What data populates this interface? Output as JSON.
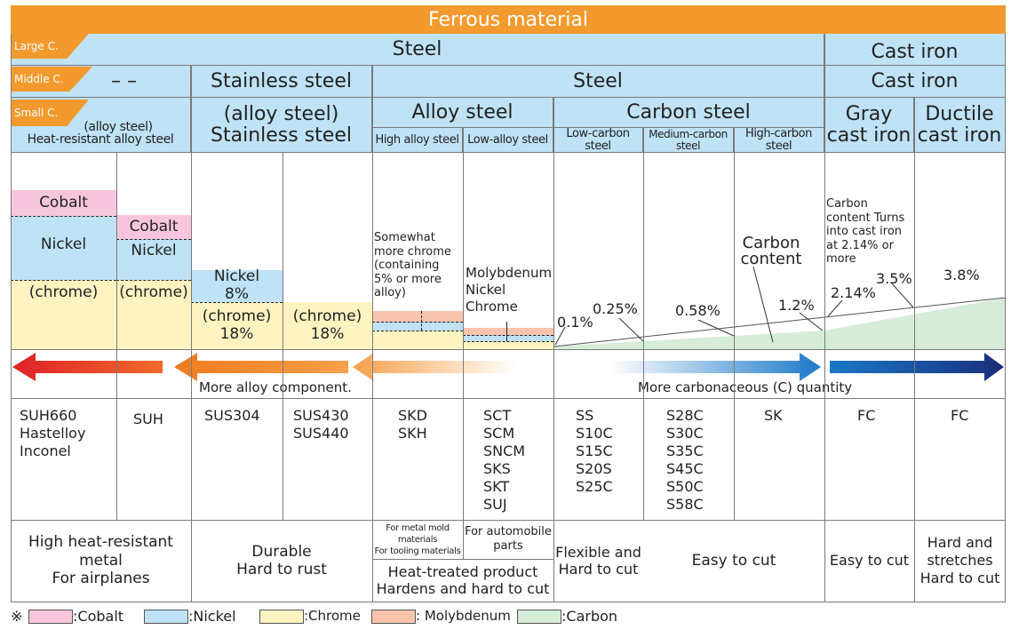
{
  "title": "Ferrous material",
  "labels": {
    "large": "Large C.",
    "middle": "Middle C.",
    "small": "Small C."
  },
  "large": {
    "steel": "Steel",
    "cast_iron": "Cast iron"
  },
  "middle": {
    "dashes": "– –",
    "stainless": "Stainless steel",
    "steel": "Steel",
    "cast_iron": "Cast iron"
  },
  "small": {
    "heat_line1": "(alloy steel)",
    "heat_line2": "Heat-resistant alloy steel",
    "stainless_line1": "(alloy steel)",
    "stainless_line2": "Stainless steel",
    "alloy": "Alloy steel",
    "carbon": "Carbon steel",
    "gray_line1": "Gray",
    "gray_line2": "cast iron",
    "ductile_line1": "Ductile",
    "ductile_line2": "cast iron"
  },
  "subcats": {
    "high_alloy": "High alloy steel",
    "low_alloy": "Low-alloy steel",
    "low_carbon": "Low-carbon steel",
    "medium_carbon": "Medium-carbon steel",
    "high_carbon": "High-carbon steel"
  },
  "composition": {
    "cobalt": "Cobalt",
    "nickel": "Nickel",
    "chrome_paren": "(chrome)",
    "nickel_8": "Nickel",
    "pct_8": "8%",
    "pct_18": "18%",
    "somewhat_chrome": "Somewhat more chrome (containing 5% or more alloy)",
    "molybdenum": "Molybdenum",
    "mo_nickel": "Nickel",
    "mo_chrome": "Chrome",
    "carbon_content": "Carbon content",
    "cast_iron_note": "Carbon content Turns into cast iron at 2.14% or more"
  },
  "carbon_pcts": [
    "0.1%",
    "0.25%",
    "0.58%",
    "1.2%",
    "2.14%",
    "3.5%",
    "3.8%"
  ],
  "arrows": {
    "alloy_text": "More alloy component.",
    "carbon_text": "More carbonaceous (C) quantity",
    "colors": {
      "red": "#e0202a",
      "orange": "#f07a1e",
      "blue": "#1b78c8",
      "navy": "#1a2e7a",
      "carbon_fill": "#d5ecd9"
    }
  },
  "codes": {
    "heat1": [
      "SUH660",
      "Hastelloy",
      "Inconel"
    ],
    "heat2": [
      "SUH"
    ],
    "sus304": [
      "SUS304"
    ],
    "sus430": [
      "SUS430",
      "SUS440"
    ],
    "high_alloy": [
      "SKD",
      "SKH"
    ],
    "low_alloy": [
      "SCT",
      "SCM",
      "SNCM",
      "SKS",
      "SKT",
      "SUJ"
    ],
    "low_carbon": [
      "SS",
      "S10C",
      "S15C",
      "S20S",
      "S25C"
    ],
    "medium_carbon": [
      "S28C",
      "S30C",
      "S35C",
      "S45C",
      "S50C",
      "S58C"
    ],
    "high_carbon": [
      "SK"
    ],
    "gray": [
      "FC"
    ],
    "ductile": [
      "FC"
    ]
  },
  "uses": {
    "heat_line1": "High heat-resistant metal",
    "heat_line2": "For airplanes",
    "stainless_line1": "Durable",
    "stainless_line2": "Hard to rust",
    "mold_line1": "For metal mold materials",
    "mold_line2": "For tooling materials",
    "auto_line1": "For automobile",
    "auto_line2": "parts",
    "heat_treated_line1": "Heat-treated product",
    "heat_treated_line2": "Hardens and hard to cut",
    "flexible_line1": "Flexible and",
    "flexible_line2": "Hard to cut",
    "easy": "Easy to cut",
    "easy_ci": "Easy to cut",
    "hard_line1": "Hard and",
    "hard_line2": "stretches",
    "hard_line3": "Hard to cut"
  },
  "legend": {
    "mark": "※",
    "cobalt": ":Cobalt",
    "nickel": ":Nickel",
    "chrome": ":Chrome",
    "molybdenum": ": Molybdenum",
    "carbon": ":Carbon"
  }
}
